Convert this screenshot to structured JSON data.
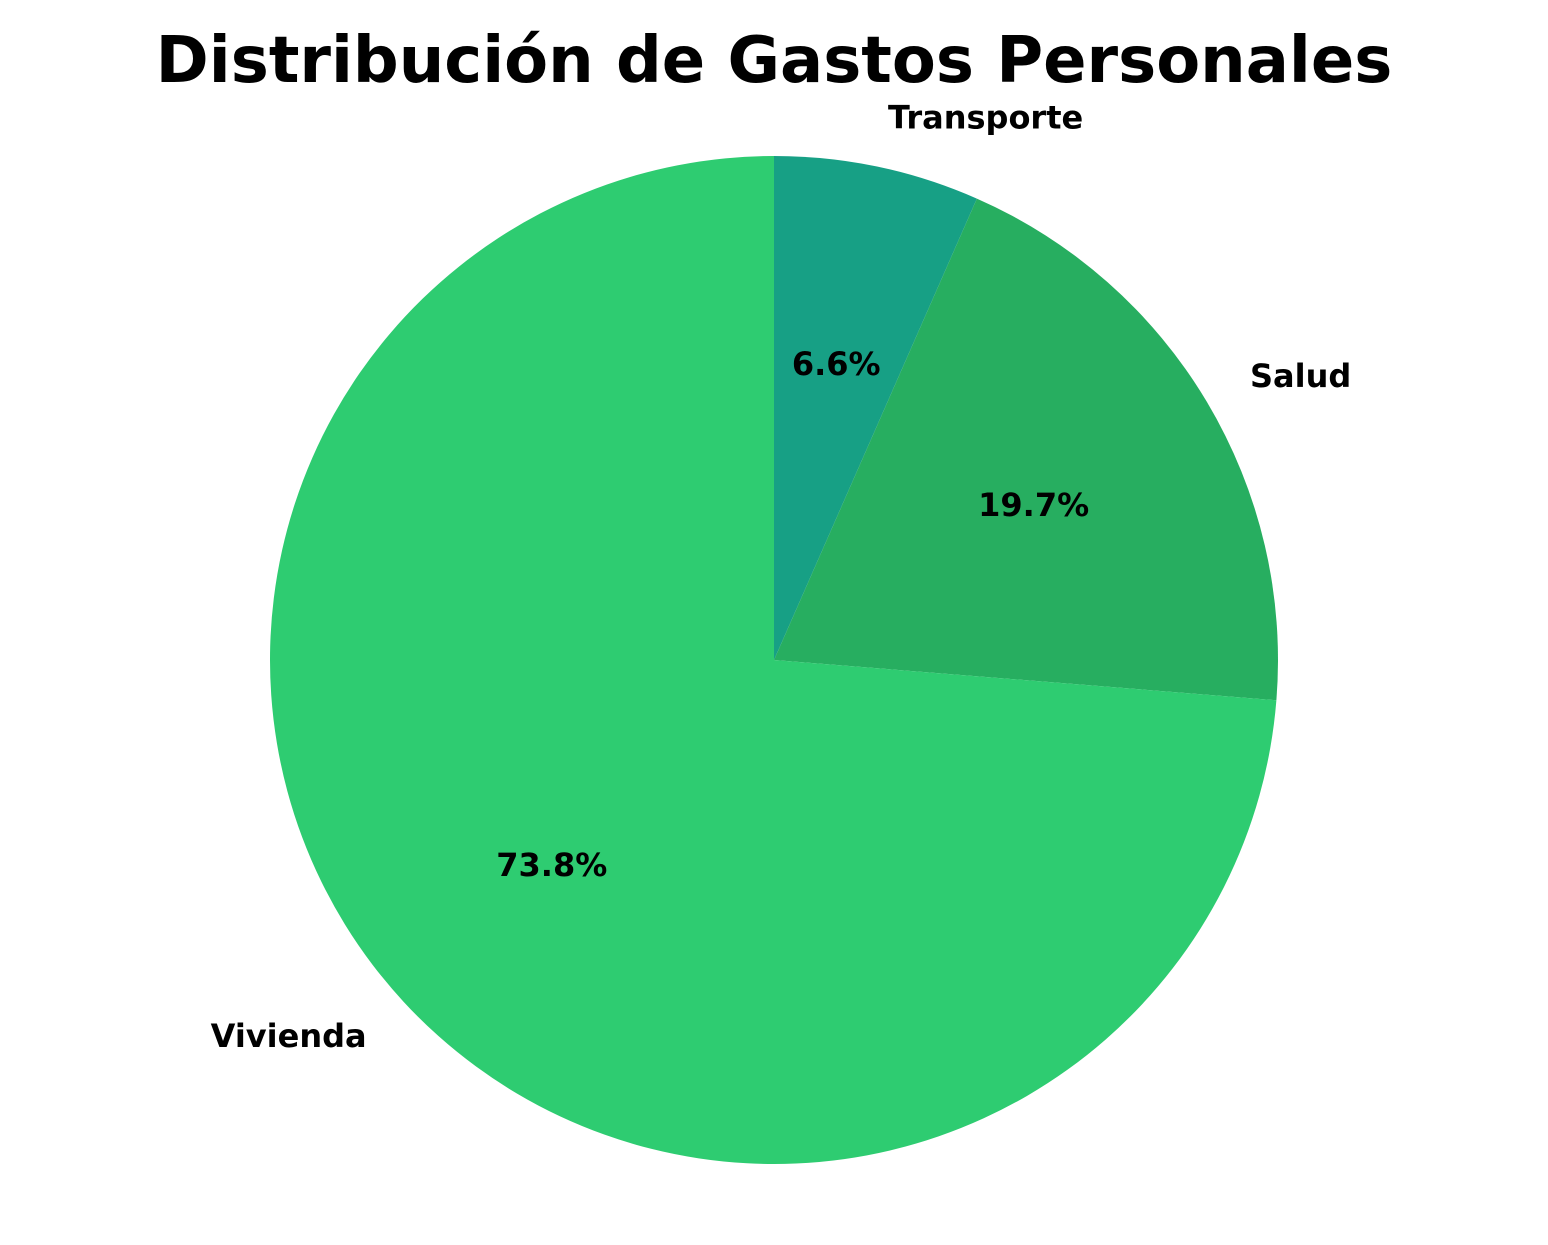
{
  "chart_data": {
    "type": "pie",
    "title": "Distribución de Gastos Personales",
    "start_angle_deg": 90,
    "direction": "clockwise",
    "slices": [
      {
        "label": "Transporte",
        "value": 6.6,
        "percent_label": "6.6%",
        "color": "#17a085"
      },
      {
        "label": "Salud",
        "value": 19.7,
        "percent_label": "19.7%",
        "color": "#27ae60"
      },
      {
        "label": "Vivienda",
        "value": 73.8,
        "percent_label": "73.8%",
        "color": "#2ecc71"
      }
    ],
    "legend": "none"
  }
}
